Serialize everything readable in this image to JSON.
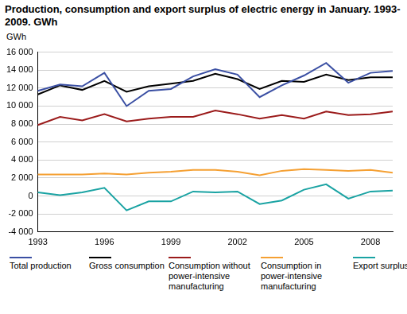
{
  "chart_data": {
    "type": "line",
    "title": "Production, consumption and export surplus of electric energy in January. 1993-2009. GWh",
    "y_label": "GWh",
    "categories": [
      "1993",
      null,
      null,
      "1996",
      null,
      null,
      "1999",
      null,
      null,
      "2002",
      null,
      null,
      "2005",
      null,
      null,
      "2008",
      null
    ],
    "series": [
      {
        "name": "Total production",
        "color": "#3a4fa3",
        "values": [
          11700,
          12400,
          12200,
          13700,
          10000,
          11700,
          11900,
          13300,
          14100,
          13500,
          11000,
          12300,
          13400,
          14800,
          12600,
          13700,
          13900
        ]
      },
      {
        "name": "Gross consumption",
        "color": "#000000",
        "values": [
          11300,
          12300,
          11800,
          12800,
          11600,
          12200,
          12500,
          12800,
          13600,
          13000,
          11900,
          12800,
          12700,
          13500,
          12900,
          13200,
          13200
        ]
      },
      {
        "name": "Consumption without power-intensive manufacturing",
        "color": "#9b1b1b",
        "values": [
          7900,
          8800,
          8400,
          9100,
          8300,
          8600,
          8800,
          8800,
          9500,
          9100,
          8600,
          9000,
          8600,
          9400,
          9000,
          9100,
          9400
        ]
      },
      {
        "name": "Consumption in power-intensive manufacturing",
        "color": "#f5a033",
        "values": [
          2400,
          2400,
          2400,
          2500,
          2400,
          2600,
          2700,
          2900,
          2900,
          2700,
          2300,
          2800,
          3000,
          2900,
          2800,
          2900,
          2600
        ]
      },
      {
        "name": "Export surplus",
        "color": "#1aa3a3",
        "values": [
          400,
          100,
          400,
          900,
          -1600,
          -600,
          -600,
          500,
          400,
          500,
          -900,
          -500,
          700,
          1300,
          -300,
          500,
          600
        ]
      }
    ],
    "ylim": [
      -4000,
      16000
    ],
    "yticks": [
      {
        "value": -4000,
        "label": "-4 000"
      },
      {
        "value": -2000,
        "label": "-2 000"
      },
      0,
      {
        "value": 2000,
        "label": "2 000"
      },
      {
        "value": 4000,
        "label": "4 000"
      },
      {
        "value": 6000,
        "label": "6 000"
      },
      {
        "value": 8000,
        "label": "8 000"
      },
      {
        "value": 10000,
        "label": "10 000"
      },
      {
        "value": 12000,
        "label": "12 000"
      },
      {
        "value": 14000,
        "label": "14 000"
      },
      {
        "value": 16000,
        "label": "16 000"
      }
    ],
    "grid": true,
    "legend": "bottom"
  }
}
